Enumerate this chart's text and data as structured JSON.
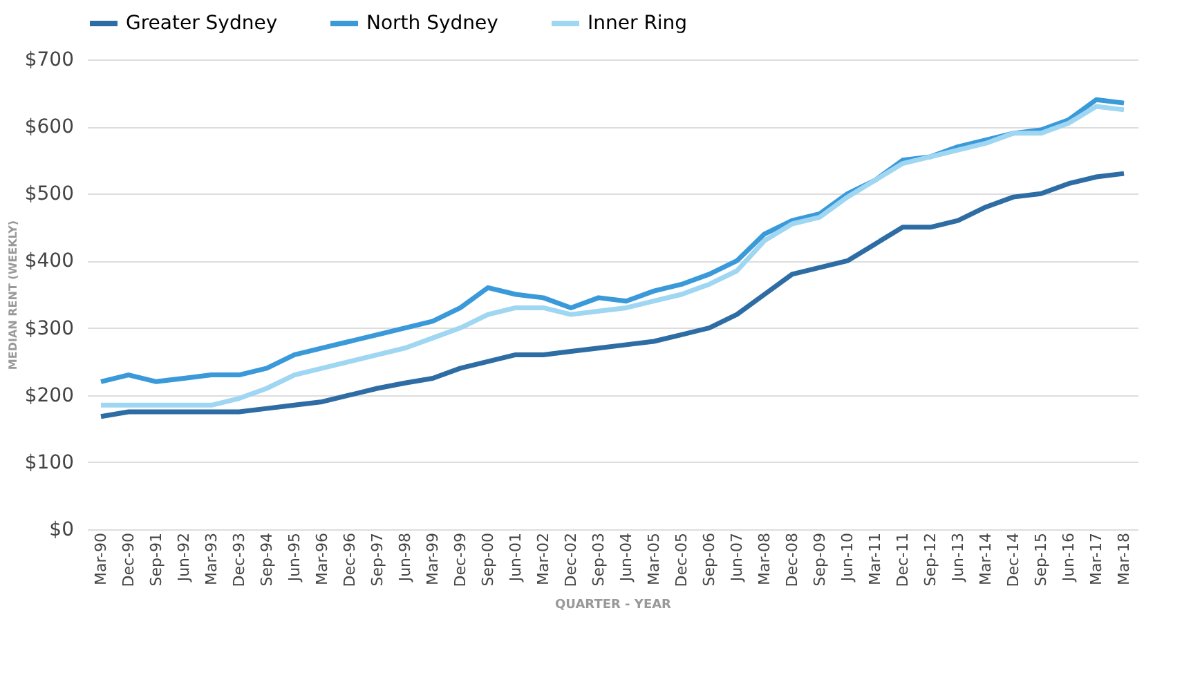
{
  "chart_data": {
    "type": "line",
    "xlabel": "QUARTER - YEAR",
    "ylabel": "MEDIAN RENT (WEEKLY)",
    "categories": [
      "Mar-90",
      "Dec-90",
      "Sep-91",
      "Jun-92",
      "Mar-93",
      "Dec-93",
      "Sep-94",
      "Jun-95",
      "Mar-96",
      "Dec-96",
      "Sep-97",
      "Jun-98",
      "Mar-99",
      "Dec-99",
      "Sep-00",
      "Jun-01",
      "Mar-02",
      "Dec-02",
      "Sep-03",
      "Jun-04",
      "Mar-05",
      "Dec-05",
      "Sep-06",
      "Jun-07",
      "Mar-08",
      "Dec-08",
      "Sep-09",
      "Jun-10",
      "Mar-11",
      "Dec-11",
      "Sep-12",
      "Jun-13",
      "Mar-14",
      "Dec-14",
      "Sep-15",
      "Jun-16",
      "Mar-17",
      "Mar-18"
    ],
    "series": [
      {
        "name": "Greater Sydney",
        "color": "#2e6da4",
        "values": [
          168,
          175,
          175,
          175,
          175,
          175,
          180,
          185,
          190,
          200,
          210,
          218,
          225,
          240,
          250,
          260,
          260,
          265,
          270,
          275,
          280,
          290,
          300,
          320,
          350,
          380,
          390,
          400,
          425,
          450,
          450,
          460,
          480,
          495,
          500,
          515,
          525,
          530
        ]
      },
      {
        "name": "North Sydney",
        "color": "#3a9ad9",
        "values": [
          220,
          230,
          220,
          225,
          230,
          230,
          240,
          260,
          270,
          280,
          290,
          300,
          310,
          330,
          360,
          350,
          345,
          330,
          345,
          340,
          355,
          365,
          380,
          400,
          440,
          460,
          470,
          500,
          520,
          550,
          555,
          570,
          580,
          590,
          595,
          610,
          640,
          635
        ]
      },
      {
        "name": "Inner Ring",
        "color": "#9fd6f2",
        "values": [
          185,
          185,
          185,
          185,
          185,
          195,
          210,
          230,
          240,
          250,
          260,
          270,
          285,
          300,
          320,
          330,
          330,
          320,
          325,
          330,
          340,
          350,
          365,
          385,
          430,
          455,
          465,
          495,
          520,
          545,
          555,
          565,
          575,
          590,
          590,
          605,
          630,
          625
        ]
      }
    ],
    "ylim": [
      0,
      700
    ],
    "yticks": [
      {
        "value": 0,
        "label": "$0"
      },
      {
        "value": 100,
        "label": "$100"
      },
      {
        "value": 200,
        "label": "$200"
      },
      {
        "value": 300,
        "label": "$300"
      },
      {
        "value": 400,
        "label": "$400"
      },
      {
        "value": 500,
        "label": "$500"
      },
      {
        "value": 600,
        "label": "$600"
      },
      {
        "value": 700,
        "label": "$700"
      }
    ],
    "grid": "y",
    "legend": "top",
    "marker": "none",
    "line_style": "solid"
  }
}
